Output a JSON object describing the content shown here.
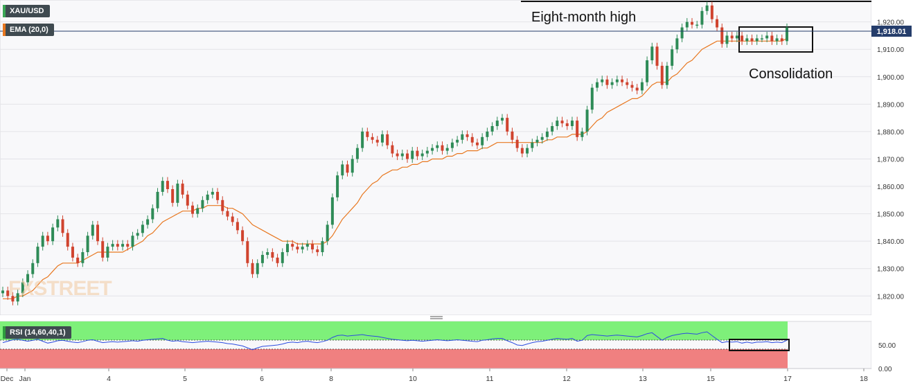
{
  "chart_data": [
    {
      "type": "candlestick",
      "symbol": "XAU/USD",
      "indicator_label": "EMA (20,0)",
      "last_price_label": "1,918.01",
      "ylim": [
        1813,
        1928
      ],
      "y_ticks": [
        "1,920.00",
        "1,910.00",
        "1,900.00",
        "1,890.00",
        "1,880.00",
        "1,870.00",
        "1,860.00",
        "1,850.00",
        "1,840.00",
        "1,830.00",
        "1,820.00"
      ],
      "y_tick_values": [
        1920,
        1910,
        1900,
        1890,
        1880,
        1870,
        1860,
        1850,
        1840,
        1830,
        1820
      ],
      "x_ticks": [
        "Dec",
        "Jan",
        "4",
        "5",
        "6",
        "8",
        "10",
        "11",
        "12",
        "13",
        "15",
        "17",
        "18"
      ],
      "annotations": [
        "Eight-month high",
        "Consolidation"
      ],
      "series_closes": [
        1822,
        1820,
        1818,
        1821,
        1825,
        1828,
        1832,
        1838,
        1842,
        1840,
        1845,
        1848,
        1843,
        1838,
        1834,
        1832,
        1836,
        1842,
        1846,
        1840,
        1834,
        1838,
        1839,
        1838,
        1839,
        1838,
        1842,
        1843,
        1846,
        1848,
        1852,
        1858,
        1862,
        1859,
        1854,
        1861,
        1857,
        1853,
        1850,
        1852,
        1855,
        1857,
        1858,
        1855,
        1851,
        1849,
        1847,
        1844,
        1840,
        1832,
        1828,
        1832,
        1835,
        1836,
        1834,
        1832,
        1836,
        1839,
        1838,
        1837,
        1838,
        1839,
        1837,
        1836,
        1840,
        1846,
        1856,
        1864,
        1868,
        1865,
        1870,
        1874,
        1880,
        1878,
        1877,
        1876,
        1879,
        1875,
        1872,
        1871,
        1872,
        1870,
        1873,
        1871,
        1872,
        1873,
        1874,
        1875,
        1873,
        1874,
        1876,
        1877,
        1879,
        1878,
        1876,
        1875,
        1878,
        1880,
        1882,
        1884,
        1885,
        1880,
        1877,
        1874,
        1872,
        1874,
        1876,
        1877,
        1878,
        1880,
        1882,
        1884,
        1883,
        1882,
        1884,
        1878,
        1880,
        1888,
        1896,
        1898,
        1899,
        1897,
        1898,
        1899,
        1898,
        1897,
        1896,
        1895,
        1898,
        1906,
        1911,
        1904,
        1897,
        1904,
        1910,
        1914,
        1918,
        1920,
        1919,
        1919,
        1924,
        1926,
        1921,
        1918,
        1912,
        1915,
        1914,
        1915,
        1913,
        1914,
        1913,
        1914,
        1914,
        1915,
        1913,
        1914,
        1913,
        1918
      ],
      "ema_values": [
        1819,
        1819,
        1819,
        1820,
        1820,
        1821,
        1822,
        1824,
        1826,
        1827,
        1829,
        1831,
        1832,
        1832,
        1832,
        1832,
        1833,
        1834,
        1835,
        1836,
        1836,
        1836,
        1836,
        1836,
        1836,
        1837,
        1838,
        1839,
        1840,
        1842,
        1843,
        1845,
        1847,
        1848,
        1849,
        1850,
        1851,
        1851,
        1851,
        1852,
        1852,
        1853,
        1853,
        1853,
        1853,
        1852,
        1852,
        1851,
        1850,
        1848,
        1846,
        1845,
        1844,
        1843,
        1842,
        1841,
        1840,
        1840,
        1840,
        1839,
        1839,
        1839,
        1839,
        1839,
        1839,
        1840,
        1842,
        1845,
        1848,
        1850,
        1852,
        1854,
        1857,
        1859,
        1861,
        1862,
        1864,
        1865,
        1866,
        1866,
        1867,
        1867,
        1868,
        1868,
        1869,
        1869,
        1870,
        1870,
        1870,
        1871,
        1871,
        1872,
        1872,
        1873,
        1873,
        1873,
        1874,
        1874,
        1875,
        1876,
        1876,
        1876,
        1876,
        1876,
        1876,
        1876,
        1876,
        1876,
        1876,
        1877,
        1877,
        1878,
        1878,
        1878,
        1879,
        1879,
        1879,
        1880,
        1882,
        1884,
        1885,
        1887,
        1888,
        1889,
        1890,
        1891,
        1892,
        1892,
        1893,
        1895,
        1897,
        1898,
        1898,
        1898,
        1900,
        1901,
        1903,
        1905,
        1906,
        1908,
        1910,
        1911,
        1912,
        1913,
        1913,
        1913,
        1913,
        1913,
        1913,
        1913,
        1913,
        1913,
        1913,
        1913,
        1913,
        1913,
        1913,
        1914
      ]
    },
    {
      "type": "line",
      "indicator_label": "RSI (14,60,40,1)",
      "ylim": [
        0,
        100
      ],
      "upper_band": 60,
      "lower_band": 40,
      "y_ticks": [
        "50.00",
        "0.00"
      ],
      "y_tick_values": [
        50,
        0
      ],
      "rsi_values": [
        55,
        58,
        61,
        62,
        60,
        58,
        60,
        62,
        58,
        54,
        56,
        59,
        60,
        58,
        56,
        55,
        57,
        60,
        61,
        58,
        55,
        56,
        57,
        56,
        57,
        58,
        59,
        58,
        60,
        61,
        62,
        63,
        64,
        60,
        58,
        59,
        57,
        56,
        55,
        56,
        57,
        58,
        57,
        56,
        55,
        53,
        52,
        50,
        48,
        44,
        40,
        44,
        47,
        48,
        49,
        50,
        52,
        55,
        56,
        55,
        57,
        58,
        56,
        55,
        57,
        60,
        66,
        70,
        71,
        69,
        70,
        71,
        72,
        70,
        69,
        68,
        66,
        64,
        62,
        61,
        60,
        59,
        60,
        59,
        58,
        59,
        60,
        61,
        60,
        59,
        60,
        61,
        60,
        59,
        58,
        57,
        60,
        61,
        63,
        64,
        64,
        59,
        55,
        50,
        49,
        52,
        55,
        57,
        58,
        60,
        62,
        64,
        63,
        62,
        64,
        58,
        60,
        70,
        72,
        71,
        70,
        69,
        70,
        71,
        70,
        69,
        68,
        67,
        70,
        74,
        76,
        68,
        60,
        66,
        70,
        72,
        74,
        75,
        74,
        73,
        76,
        78,
        70,
        62,
        55,
        57,
        56,
        57,
        54,
        56,
        54,
        56,
        56,
        57,
        55,
        56,
        55,
        60
      ]
    }
  ]
}
